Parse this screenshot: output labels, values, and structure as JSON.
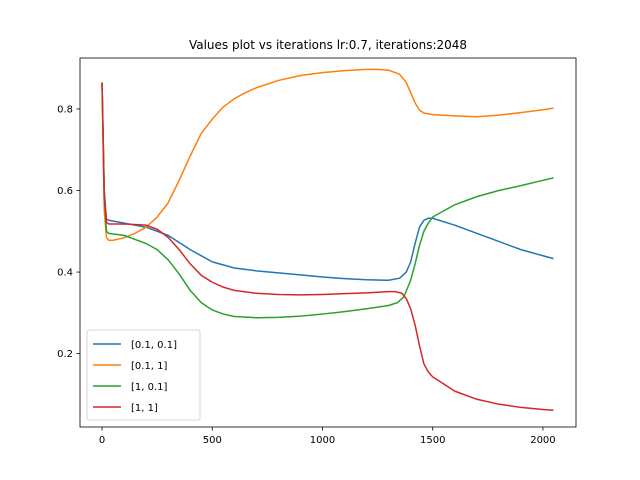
{
  "chart_data": {
    "type": "line",
    "title": "Values plot vs iterations lr:0.7, iterations:2048",
    "xlabel": "",
    "ylabel": "",
    "xlim": [
      -100,
      2150
    ],
    "ylim": [
      0.02,
      0.925
    ],
    "x_ticks": [
      0,
      500,
      1000,
      1500,
      2000
    ],
    "x_tick_labels": [
      "0",
      "500",
      "1000",
      "1500",
      "2000"
    ],
    "y_ticks": [
      0.2,
      0.4,
      0.6,
      0.8
    ],
    "y_tick_labels": [
      "0.2",
      "0.4",
      "0.6",
      "0.8"
    ],
    "grid": false,
    "legend_position": "lower-left",
    "series": [
      {
        "name": "[0.1, 0.1]",
        "color": "#1f77b4",
        "points": [
          [
            0,
            0.865
          ],
          [
            10,
            0.6
          ],
          [
            20,
            0.53
          ],
          [
            30,
            0.527
          ],
          [
            100,
            0.52
          ],
          [
            200,
            0.51
          ],
          [
            300,
            0.49
          ],
          [
            400,
            0.455
          ],
          [
            500,
            0.425
          ],
          [
            600,
            0.41
          ],
          [
            700,
            0.403
          ],
          [
            800,
            0.398
          ],
          [
            900,
            0.393
          ],
          [
            1000,
            0.388
          ],
          [
            1100,
            0.384
          ],
          [
            1200,
            0.381
          ],
          [
            1300,
            0.38
          ],
          [
            1350,
            0.385
          ],
          [
            1380,
            0.4
          ],
          [
            1400,
            0.425
          ],
          [
            1420,
            0.47
          ],
          [
            1440,
            0.51
          ],
          [
            1460,
            0.527
          ],
          [
            1480,
            0.532
          ],
          [
            1500,
            0.532
          ],
          [
            1600,
            0.515
          ],
          [
            1700,
            0.495
          ],
          [
            1800,
            0.475
          ],
          [
            1900,
            0.455
          ],
          [
            2000,
            0.44
          ],
          [
            2048,
            0.433
          ]
        ]
      },
      {
        "name": "[0.1, 1]",
        "color": "#ff7f0e",
        "points": [
          [
            0,
            0.865
          ],
          [
            10,
            0.55
          ],
          [
            20,
            0.485
          ],
          [
            30,
            0.478
          ],
          [
            50,
            0.478
          ],
          [
            100,
            0.484
          ],
          [
            150,
            0.495
          ],
          [
            200,
            0.51
          ],
          [
            250,
            0.535
          ],
          [
            300,
            0.57
          ],
          [
            350,
            0.625
          ],
          [
            400,
            0.685
          ],
          [
            450,
            0.74
          ],
          [
            500,
            0.775
          ],
          [
            550,
            0.805
          ],
          [
            600,
            0.825
          ],
          [
            650,
            0.84
          ],
          [
            700,
            0.852
          ],
          [
            800,
            0.87
          ],
          [
            900,
            0.882
          ],
          [
            1000,
            0.889
          ],
          [
            1100,
            0.894
          ],
          [
            1200,
            0.897
          ],
          [
            1250,
            0.897
          ],
          [
            1300,
            0.895
          ],
          [
            1350,
            0.885
          ],
          [
            1380,
            0.865
          ],
          [
            1400,
            0.84
          ],
          [
            1420,
            0.815
          ],
          [
            1440,
            0.797
          ],
          [
            1460,
            0.79
          ],
          [
            1500,
            0.786
          ],
          [
            1600,
            0.783
          ],
          [
            1700,
            0.781
          ],
          [
            1800,
            0.785
          ],
          [
            1900,
            0.791
          ],
          [
            2000,
            0.798
          ],
          [
            2048,
            0.802
          ]
        ]
      },
      {
        "name": "[1, 0.1]",
        "color": "#2ca02c",
        "points": [
          [
            0,
            0.865
          ],
          [
            10,
            0.6
          ],
          [
            20,
            0.5
          ],
          [
            30,
            0.495
          ],
          [
            100,
            0.49
          ],
          [
            200,
            0.47
          ],
          [
            250,
            0.455
          ],
          [
            300,
            0.43
          ],
          [
            350,
            0.395
          ],
          [
            400,
            0.355
          ],
          [
            450,
            0.325
          ],
          [
            500,
            0.307
          ],
          [
            550,
            0.297
          ],
          [
            600,
            0.291
          ],
          [
            700,
            0.288
          ],
          [
            800,
            0.289
          ],
          [
            900,
            0.292
          ],
          [
            1000,
            0.297
          ],
          [
            1100,
            0.303
          ],
          [
            1200,
            0.31
          ],
          [
            1300,
            0.318
          ],
          [
            1340,
            0.325
          ],
          [
            1370,
            0.34
          ],
          [
            1400,
            0.38
          ],
          [
            1420,
            0.42
          ],
          [
            1440,
            0.465
          ],
          [
            1460,
            0.5
          ],
          [
            1480,
            0.52
          ],
          [
            1500,
            0.535
          ],
          [
            1600,
            0.565
          ],
          [
            1700,
            0.585
          ],
          [
            1800,
            0.6
          ],
          [
            1900,
            0.612
          ],
          [
            2000,
            0.625
          ],
          [
            2048,
            0.631
          ]
        ]
      },
      {
        "name": "[1, 1]",
        "color": "#d62728",
        "points": [
          [
            0,
            0.865
          ],
          [
            10,
            0.58
          ],
          [
            20,
            0.522
          ],
          [
            30,
            0.518
          ],
          [
            100,
            0.518
          ],
          [
            200,
            0.515
          ],
          [
            250,
            0.505
          ],
          [
            300,
            0.485
          ],
          [
            350,
            0.455
          ],
          [
            400,
            0.42
          ],
          [
            450,
            0.392
          ],
          [
            500,
            0.375
          ],
          [
            550,
            0.363
          ],
          [
            600,
            0.355
          ],
          [
            700,
            0.348
          ],
          [
            800,
            0.345
          ],
          [
            900,
            0.344
          ],
          [
            1000,
            0.345
          ],
          [
            1100,
            0.347
          ],
          [
            1200,
            0.349
          ],
          [
            1300,
            0.352
          ],
          [
            1330,
            0.352
          ],
          [
            1360,
            0.348
          ],
          [
            1380,
            0.335
          ],
          [
            1400,
            0.31
          ],
          [
            1420,
            0.27
          ],
          [
            1440,
            0.22
          ],
          [
            1460,
            0.175
          ],
          [
            1480,
            0.155
          ],
          [
            1500,
            0.143
          ],
          [
            1600,
            0.108
          ],
          [
            1700,
            0.088
          ],
          [
            1800,
            0.076
          ],
          [
            1900,
            0.068
          ],
          [
            2000,
            0.063
          ],
          [
            2048,
            0.061
          ]
        ]
      }
    ]
  }
}
